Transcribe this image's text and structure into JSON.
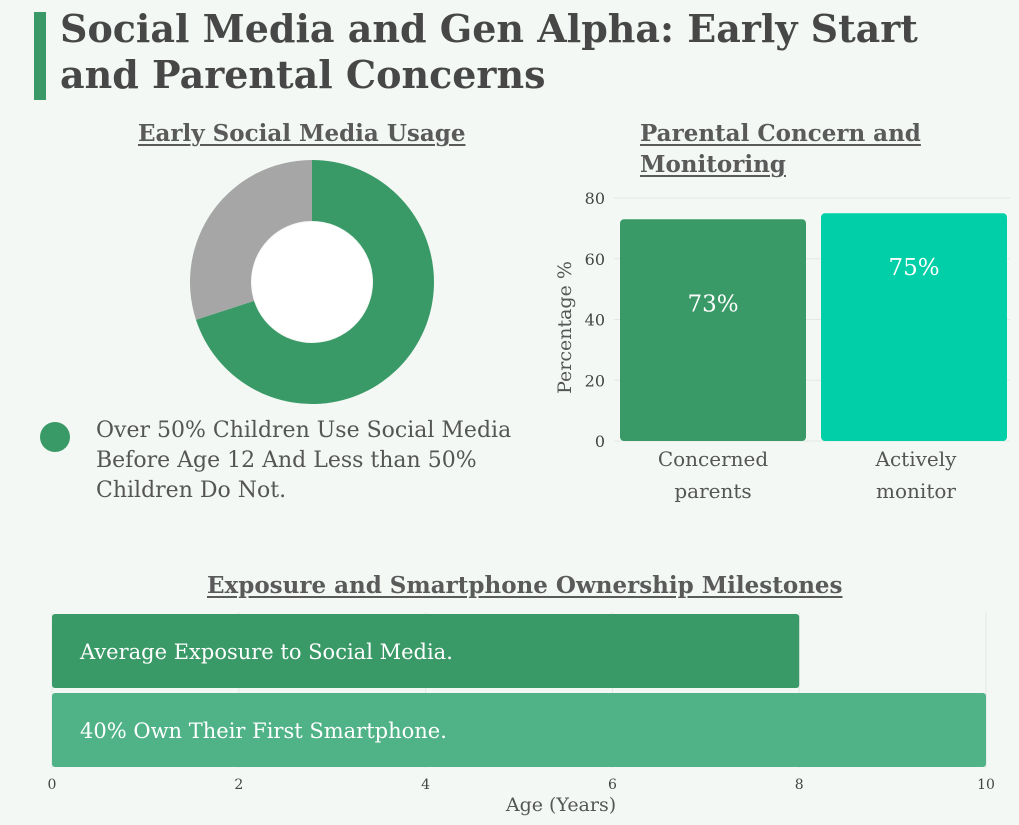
{
  "title": "Social Media and Gen Alpha: Early Start and Parental Concerns",
  "colors": {
    "accent": "#3a9a67",
    "dark_green": "#3a9a67",
    "teal": "#00cfa8",
    "light_green": "#4fb387",
    "gray": "#a6a6a6"
  },
  "chart_data": [
    {
      "type": "pie",
      "title": "Early Social Media Usage",
      "slices": [
        {
          "name": "Over 50% Children Use Social Media Before Age 12 And Less than 50% Children Do Not.",
          "value": 70,
          "color": "#3a9a67"
        },
        {
          "name": "",
          "value": 30,
          "color": "#a6a6a6"
        }
      ],
      "legend_text": "Over 50% Children Use Social Media Before Age 12 And Less than 50% Children Do Not.",
      "legend": "bottom-left"
    },
    {
      "type": "bar",
      "title": "Parental Concern and Monitoring",
      "categories": [
        "Concerned parents",
        "Actively monitor"
      ],
      "values": [
        73,
        75
      ],
      "data_labels": [
        "73%",
        "75%"
      ],
      "colors": [
        "#3a9a67",
        "#00cfa8"
      ],
      "ylabel": "Percentage %",
      "ylim": [
        0,
        80
      ],
      "yticks": [
        0,
        20,
        40,
        60,
        80
      ],
      "grid": true
    },
    {
      "type": "bar",
      "orientation": "horizontal",
      "title": "Exposure and Smartphone Ownership Milestones",
      "categories": [
        "Average Exposure to Social Media.",
        "40% Own Their First Smartphone."
      ],
      "values": [
        8,
        10
      ],
      "colors": [
        "#3a9a67",
        "#4fb387"
      ],
      "xlabel": "Age (Years)",
      "xlim": [
        0,
        10
      ],
      "xticks": [
        0,
        2,
        4,
        6,
        8,
        10
      ],
      "grid": true
    }
  ]
}
